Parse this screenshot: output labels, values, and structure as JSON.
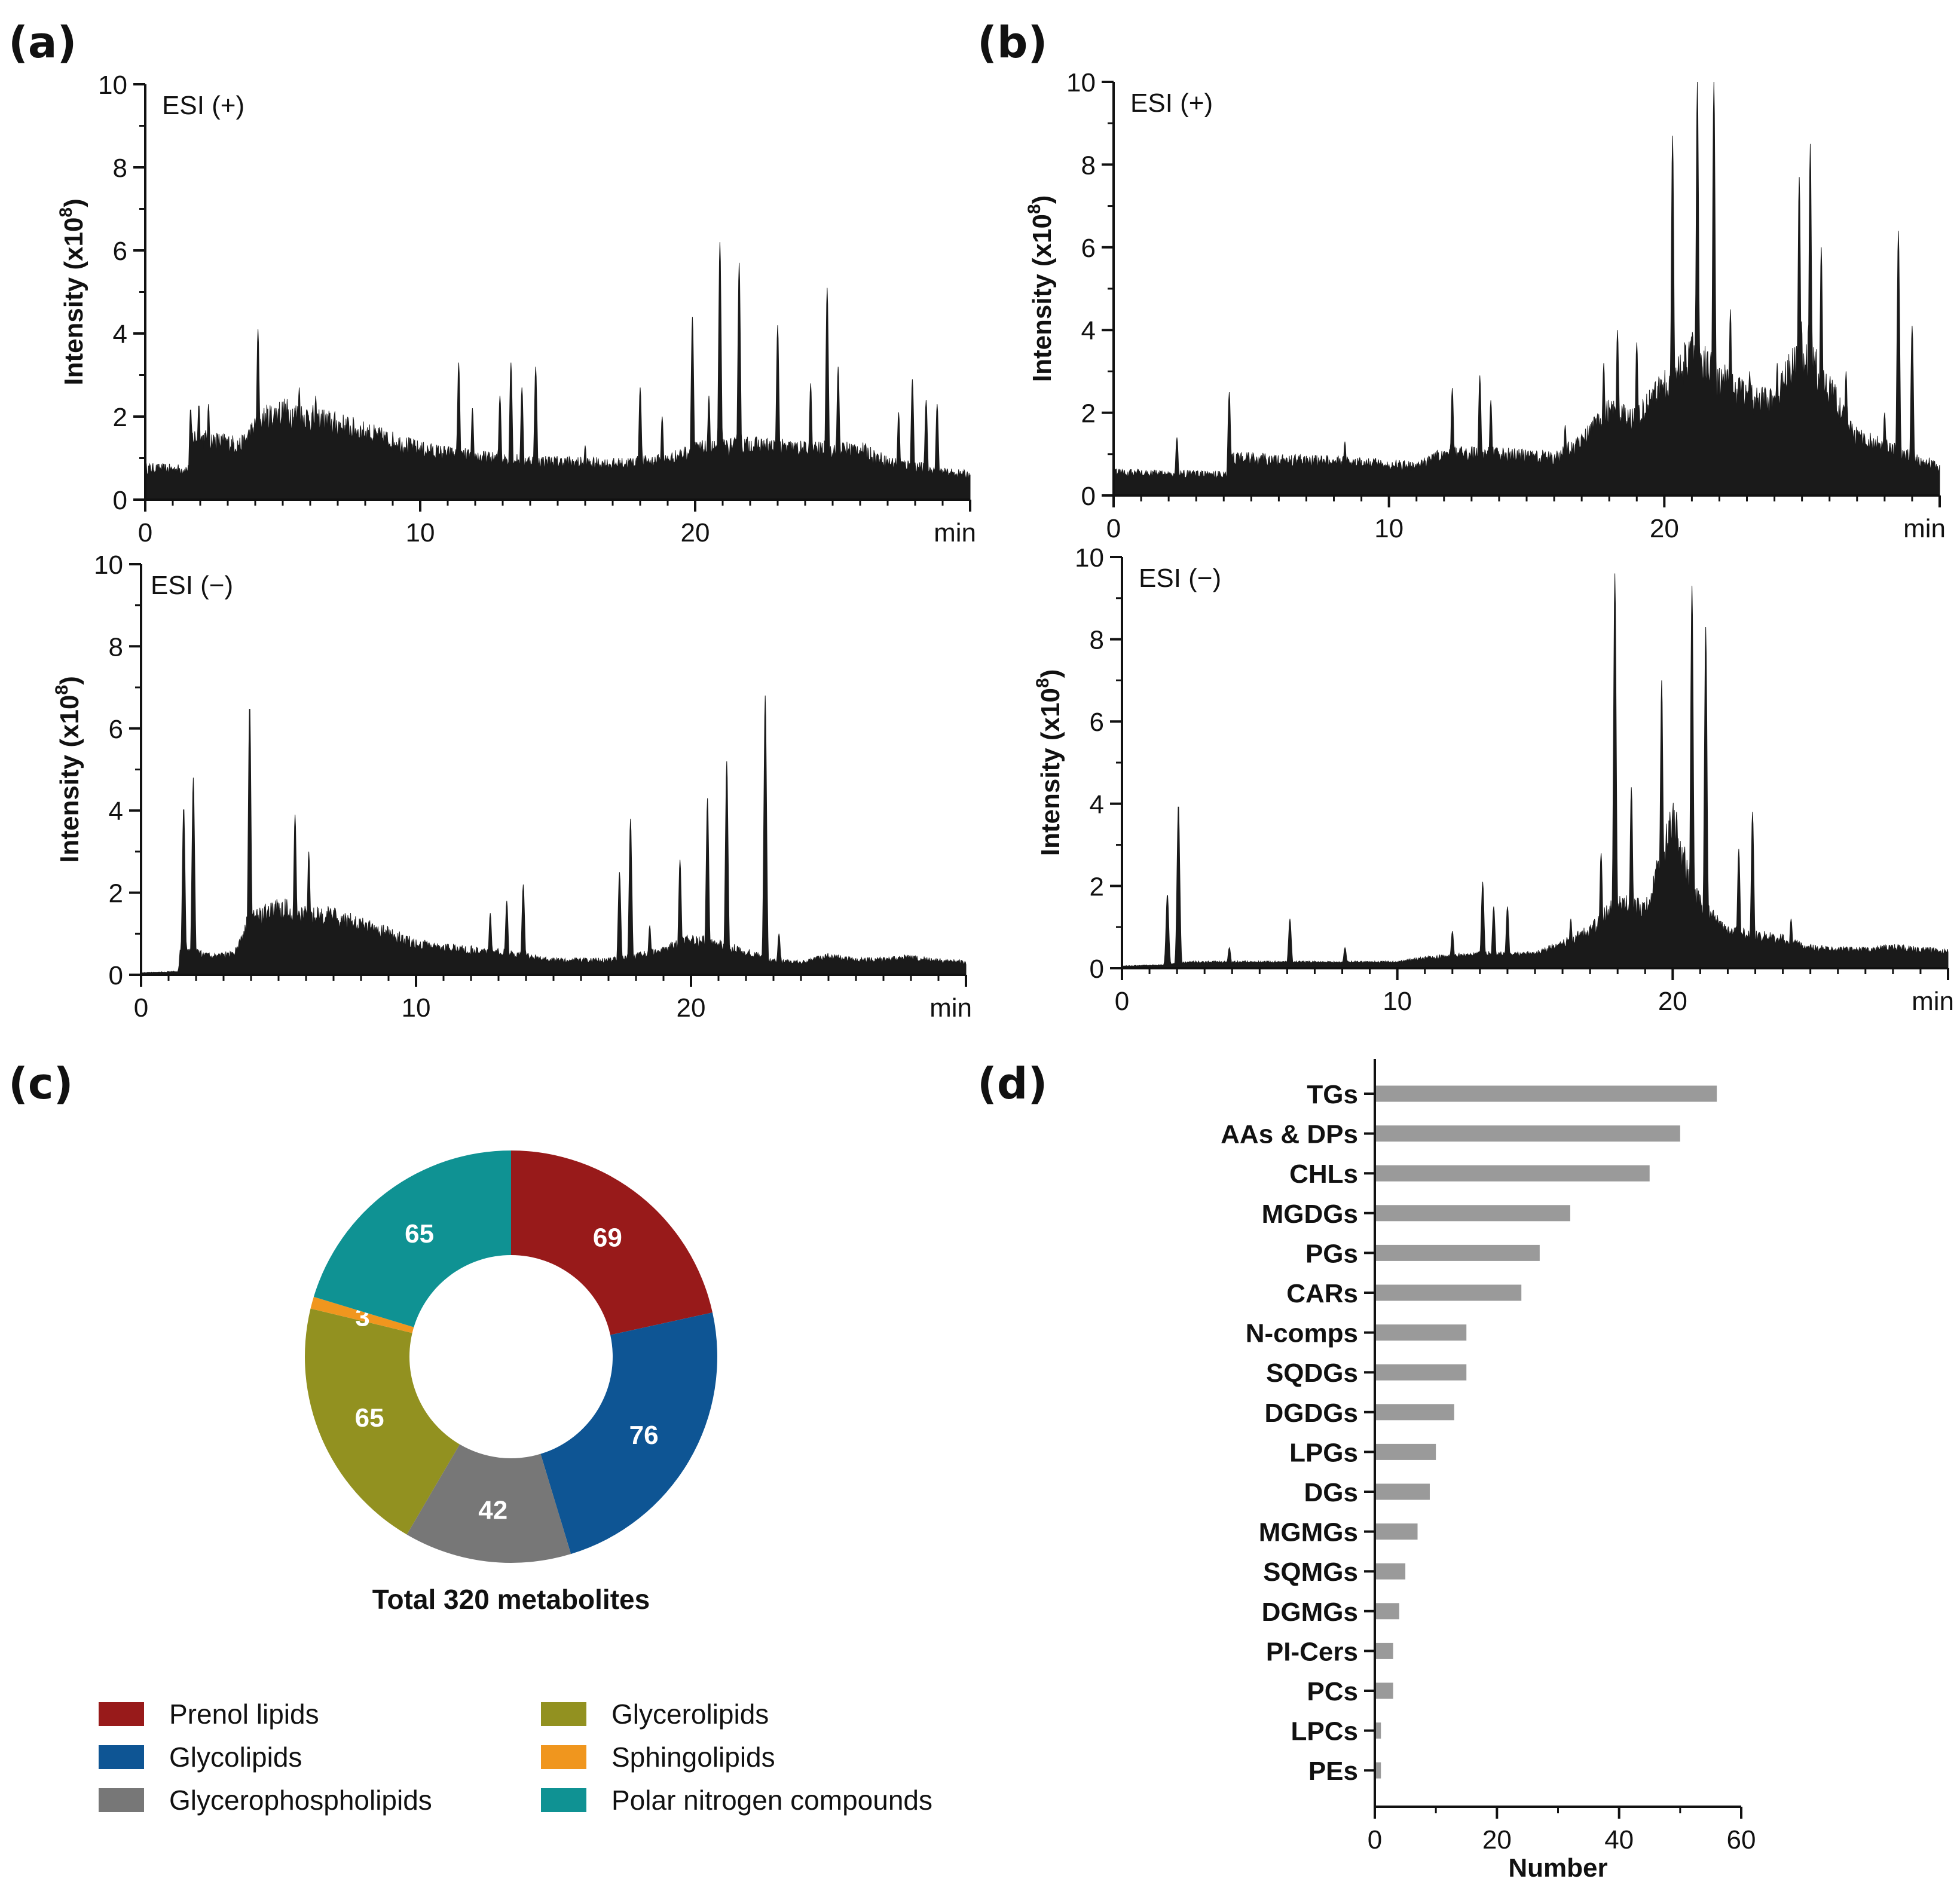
{
  "panels": {
    "a": "(a)",
    "b": "(b)",
    "c": "(c)",
    "d": "(d)"
  },
  "chart_data": [
    {
      "id": "a-pos",
      "type": "area",
      "mode_label": "ESI (+)",
      "ylabel": "Intensity",
      "ylabel_unit": "(x10",
      "ylabel_exp": "8",
      "xunit": "min",
      "xlim": [
        0,
        30
      ],
      "ylim": [
        0,
        10
      ],
      "x_ticks": [
        "0",
        "10",
        "20"
      ],
      "y_ticks": [
        "0",
        "2",
        "4",
        "6",
        "8",
        "10"
      ],
      "color": "#1a1a1a",
      "baseline": [
        [
          0,
          0.75
        ],
        [
          1.6,
          0.72
        ],
        [
          1.7,
          1.5
        ],
        [
          3.5,
          1.3
        ],
        [
          4.2,
          1.9
        ],
        [
          5,
          2.1
        ],
        [
          7,
          1.8
        ],
        [
          9,
          1.4
        ],
        [
          10,
          1.2
        ],
        [
          11,
          1.1
        ],
        [
          13,
          0.95
        ],
        [
          15,
          0.9
        ],
        [
          17,
          0.85
        ],
        [
          19,
          0.95
        ],
        [
          20,
          1.2
        ],
        [
          22,
          1.3
        ],
        [
          24,
          1.2
        ],
        [
          26,
          1.2
        ],
        [
          27,
          0.9
        ],
        [
          28,
          0.8
        ],
        [
          29,
          0.65
        ],
        [
          30,
          0.6
        ]
      ],
      "peaks": [
        [
          1.65,
          2.2
        ],
        [
          1.95,
          2.3
        ],
        [
          2.3,
          2.3
        ],
        [
          4.1,
          4.1
        ],
        [
          5.6,
          2.7
        ],
        [
          6.2,
          2.5
        ],
        [
          11.4,
          3.3
        ],
        [
          11.9,
          2.2
        ],
        [
          12.9,
          2.5
        ],
        [
          13.3,
          3.3
        ],
        [
          13.7,
          2.7
        ],
        [
          14.2,
          3.2
        ],
        [
          16.0,
          1.3
        ],
        [
          18.0,
          2.7
        ],
        [
          18.8,
          2.0
        ],
        [
          19.9,
          4.4
        ],
        [
          20.5,
          2.5
        ],
        [
          20.9,
          6.2
        ],
        [
          21.6,
          5.7
        ],
        [
          22.2,
          1.5
        ],
        [
          23.0,
          4.2
        ],
        [
          24.2,
          2.8
        ],
        [
          24.8,
          5.1
        ],
        [
          25.2,
          3.2
        ],
        [
          27.4,
          2.1
        ],
        [
          27.9,
          2.9
        ],
        [
          28.4,
          2.4
        ],
        [
          28.8,
          2.3
        ]
      ]
    },
    {
      "id": "a-neg",
      "type": "area",
      "mode_label": "ESI (−)",
      "ylabel": "Intensity",
      "ylabel_unit": "(x10",
      "ylabel_exp": "8",
      "xunit": "min",
      "xlim": [
        0,
        30
      ],
      "ylim": [
        0,
        10
      ],
      "x_ticks": [
        "0",
        "10",
        "20"
      ],
      "y_ticks": [
        "0",
        "2",
        "4",
        "6",
        "8",
        "10"
      ],
      "color": "#1a1a1a",
      "baseline": [
        [
          0,
          0.05
        ],
        [
          1.35,
          0.08
        ],
        [
          1.45,
          0.7
        ],
        [
          2.4,
          0.45
        ],
        [
          3.4,
          0.5
        ],
        [
          3.9,
          1.3
        ],
        [
          5,
          1.6
        ],
        [
          7,
          1.4
        ],
        [
          9,
          1.0
        ],
        [
          10,
          0.75
        ],
        [
          11,
          0.65
        ],
        [
          13,
          0.55
        ],
        [
          14,
          0.45
        ],
        [
          15,
          0.35
        ],
        [
          17,
          0.35
        ],
        [
          18,
          0.45
        ],
        [
          19,
          0.6
        ],
        [
          20,
          0.85
        ],
        [
          21,
          0.75
        ],
        [
          22,
          0.55
        ],
        [
          23,
          0.35
        ],
        [
          24,
          0.3
        ],
        [
          25,
          0.45
        ],
        [
          26,
          0.35
        ],
        [
          27,
          0.38
        ],
        [
          28,
          0.42
        ],
        [
          29,
          0.35
        ],
        [
          30,
          0.3
        ]
      ],
      "peaks": [
        [
          1.55,
          4.1
        ],
        [
          1.9,
          4.8
        ],
        [
          3.95,
          6.6
        ],
        [
          5.6,
          3.9
        ],
        [
          6.1,
          3.0
        ],
        [
          12.7,
          1.5
        ],
        [
          13.3,
          1.8
        ],
        [
          13.9,
          2.2
        ],
        [
          17.4,
          2.5
        ],
        [
          17.8,
          3.8
        ],
        [
          18.5,
          1.2
        ],
        [
          19.6,
          2.8
        ],
        [
          20.6,
          4.3
        ],
        [
          21.3,
          5.2
        ],
        [
          22.7,
          6.8
        ],
        [
          23.2,
          1.0
        ]
      ]
    },
    {
      "id": "b-pos",
      "type": "area",
      "mode_label": "ESI (+)",
      "ylabel": "Intensity",
      "ylabel_unit": "(x10",
      "ylabel_exp": "8",
      "xunit": "min",
      "xlim": [
        0,
        30
      ],
      "ylim": [
        0,
        10
      ],
      "x_ticks": [
        "0",
        "10",
        "20"
      ],
      "y_ticks": [
        "0",
        "2",
        "4",
        "6",
        "8",
        "10"
      ],
      "color": "#1a1a1a",
      "baseline": [
        [
          0,
          0.55
        ],
        [
          4.1,
          0.5
        ],
        [
          4.3,
          0.9
        ],
        [
          9,
          0.8
        ],
        [
          11,
          0.7
        ],
        [
          12,
          1.0
        ],
        [
          14,
          1.0
        ],
        [
          16,
          0.9
        ],
        [
          17,
          1.3
        ],
        [
          18,
          2.0
        ],
        [
          19,
          1.8
        ],
        [
          20,
          2.6
        ],
        [
          21,
          3.4
        ],
        [
          22,
          2.8
        ],
        [
          23,
          2.3
        ],
        [
          24,
          2.2
        ],
        [
          25,
          3.6
        ],
        [
          26,
          2.5
        ],
        [
          27,
          1.4
        ],
        [
          28,
          1.2
        ],
        [
          29,
          0.9
        ],
        [
          30,
          0.7
        ]
      ],
      "peaks": [
        [
          2.3,
          1.4
        ],
        [
          4.2,
          2.5
        ],
        [
          8.4,
          1.3
        ],
        [
          12.3,
          2.6
        ],
        [
          13.3,
          2.9
        ],
        [
          13.7,
          2.3
        ],
        [
          16.4,
          1.7
        ],
        [
          17.8,
          3.2
        ],
        [
          18.3,
          4.0
        ],
        [
          19.0,
          3.7
        ],
        [
          20.3,
          8.7
        ],
        [
          21.2,
          10.0
        ],
        [
          21.8,
          10.0
        ],
        [
          22.4,
          4.5
        ],
        [
          23.1,
          3.0
        ],
        [
          24.1,
          3.2
        ],
        [
          24.9,
          7.7
        ],
        [
          25.3,
          8.5
        ],
        [
          25.7,
          6.0
        ],
        [
          26.2,
          2.6
        ],
        [
          26.6,
          3.0
        ],
        [
          28.0,
          2.0
        ],
        [
          28.5,
          6.4
        ],
        [
          29.0,
          4.1
        ]
      ]
    },
    {
      "id": "b-neg",
      "type": "area",
      "mode_label": "ESI (−)",
      "ylabel": "Intensity",
      "ylabel_unit": "(x10",
      "ylabel_exp": "8",
      "xunit": "min",
      "xlim": [
        0,
        30
      ],
      "ylim": [
        0,
        10
      ],
      "x_ticks": [
        "0",
        "10",
        "20"
      ],
      "y_ticks": [
        "0",
        "2",
        "4",
        "6",
        "8",
        "10"
      ],
      "color": "#1a1a1a",
      "baseline": [
        [
          0,
          0.05
        ],
        [
          1.5,
          0.08
        ],
        [
          2.5,
          0.15
        ],
        [
          10,
          0.15
        ],
        [
          11,
          0.25
        ],
        [
          13,
          0.35
        ],
        [
          15,
          0.35
        ],
        [
          16,
          0.6
        ],
        [
          17,
          0.9
        ],
        [
          18,
          1.6
        ],
        [
          19,
          1.4
        ],
        [
          20,
          3.5
        ],
        [
          21,
          1.5
        ],
        [
          22,
          0.9
        ],
        [
          23,
          0.8
        ],
        [
          24,
          0.7
        ],
        [
          25,
          0.5
        ],
        [
          26,
          0.45
        ],
        [
          27,
          0.45
        ],
        [
          28,
          0.5
        ],
        [
          29,
          0.45
        ],
        [
          30,
          0.4
        ]
      ],
      "peaks": [
        [
          1.65,
          1.8
        ],
        [
          2.05,
          4.0
        ],
        [
          3.9,
          0.5
        ],
        [
          6.1,
          1.2
        ],
        [
          8.1,
          0.5
        ],
        [
          12.0,
          0.9
        ],
        [
          13.1,
          2.1
        ],
        [
          13.5,
          1.5
        ],
        [
          14.0,
          1.5
        ],
        [
          16.3,
          1.2
        ],
        [
          17.4,
          2.8
        ],
        [
          17.9,
          9.6
        ],
        [
          18.5,
          4.4
        ],
        [
          19.6,
          7.0
        ],
        [
          20.7,
          9.3
        ],
        [
          21.2,
          8.3
        ],
        [
          22.4,
          2.9
        ],
        [
          22.9,
          3.8
        ],
        [
          24.3,
          1.2
        ]
      ]
    },
    {
      "id": "c",
      "type": "pie",
      "donut": true,
      "total_label": "Total 320 metabolites",
      "slices": [
        {
          "name": "Prenol lipids",
          "value": 69,
          "label": "69",
          "color": "#981a1a"
        },
        {
          "name": "Glycolipids",
          "value": 76,
          "label": "76",
          "color": "#0e5594"
        },
        {
          "name": "Glycerophospholipids",
          "value": 42,
          "label": "42",
          "color": "#777777"
        },
        {
          "name": "Glycerolipids",
          "value": 65,
          "label": "65",
          "color": "#929120"
        },
        {
          "name": "Sphingolipids",
          "value": 3,
          "label": "3",
          "color": "#f0961e"
        },
        {
          "name": "Polar nitrogen compounds",
          "value": 65,
          "label": "65",
          "color": "#0f9293"
        }
      ]
    },
    {
      "id": "d",
      "type": "bar",
      "orientation": "horizontal",
      "xlabel": "Number",
      "xlim": [
        0,
        60
      ],
      "x_ticks": [
        "0",
        "20",
        "40",
        "60"
      ],
      "color": "#9a9a9a",
      "categories": [
        "TGs",
        "AAs & DPs",
        "CHLs",
        "MGDGs",
        "PGs",
        "CARs",
        "N-comps",
        "SQDGs",
        "DGDGs",
        "LPGs",
        "DGs",
        "MGMGs",
        "SQMGs",
        "DGMGs",
        "PI-Cers",
        "PCs",
        "LPCs",
        "PEs"
      ],
      "values": [
        56,
        50,
        45,
        32,
        27,
        24,
        15,
        15,
        13,
        10,
        9,
        7,
        5,
        4,
        3,
        3,
        1,
        1
      ]
    }
  ]
}
